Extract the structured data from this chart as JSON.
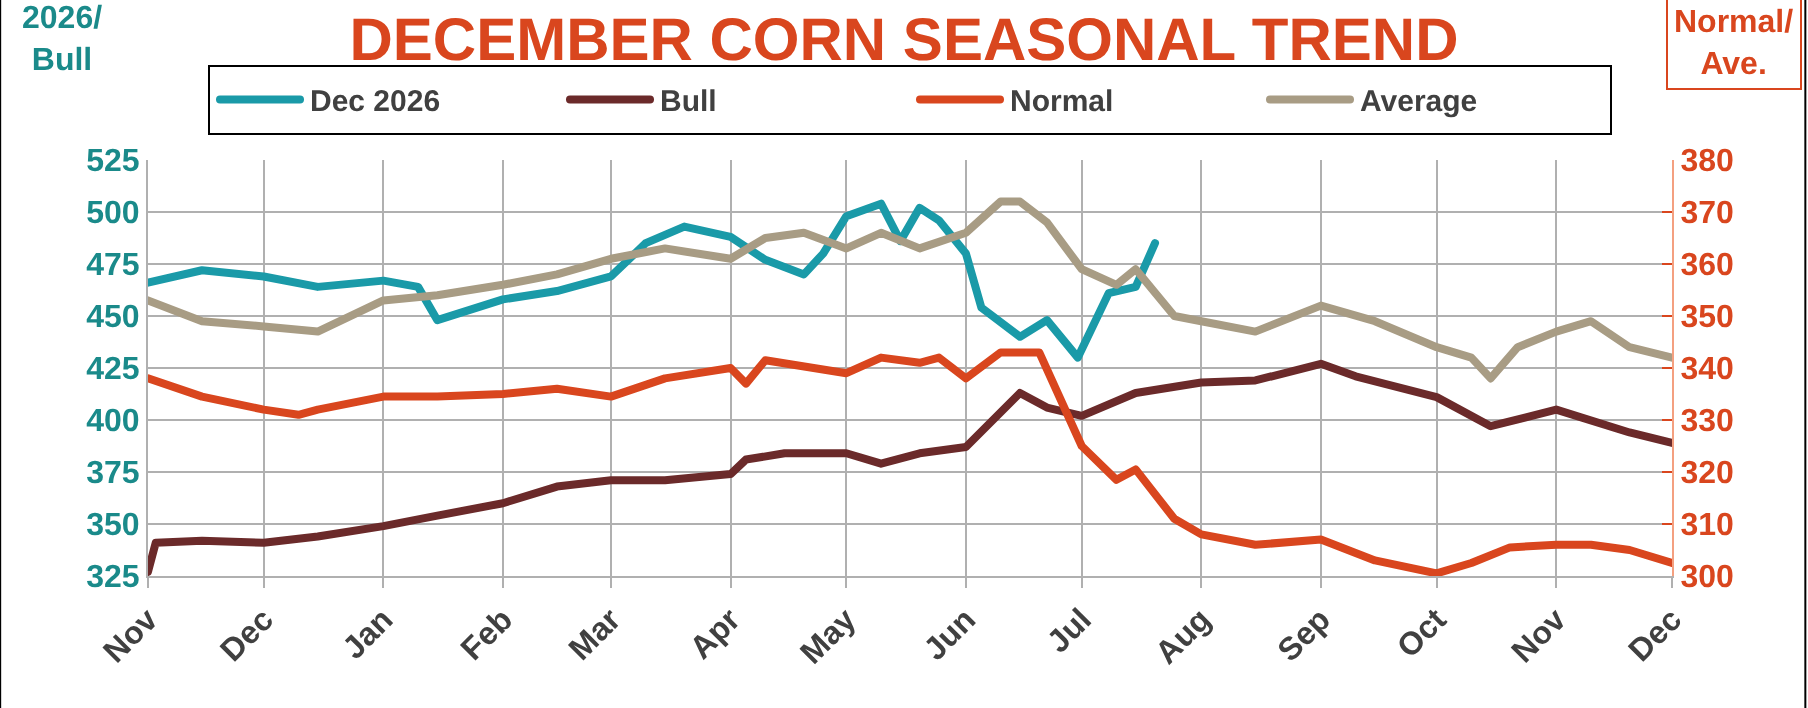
{
  "chart_data": {
    "type": "line",
    "title": "DECEMBER CORN SEASONAL TREND",
    "ylabel": "2026/\nBull",
    "y2label": "Normal/\nAve.",
    "xlim": [
      "2025-11-01",
      "2026-12-01"
    ],
    "xticks": [
      {
        "value": "2025-11-01",
        "label": "Nov"
      },
      {
        "value": "2025-12-01",
        "label": "Dec"
      },
      {
        "value": "2026-01-01",
        "label": "Jan"
      },
      {
        "value": "2026-02-01",
        "label": "Feb"
      },
      {
        "value": "2026-03-01",
        "label": "Mar"
      },
      {
        "value": "2026-04-01",
        "label": "Apr"
      },
      {
        "value": "2026-05-01",
        "label": "May"
      },
      {
        "value": "2026-06-01",
        "label": "Jun"
      },
      {
        "value": "2026-07-01",
        "label": "Jul"
      },
      {
        "value": "2026-08-01",
        "label": "Aug"
      },
      {
        "value": "2026-09-01",
        "label": "Sep"
      },
      {
        "value": "2026-10-01",
        "label": "Oct"
      },
      {
        "value": "2026-11-01",
        "label": "Nov"
      },
      {
        "value": "2026-12-01",
        "label": "Dec"
      }
    ],
    "ylim": [
      325,
      525
    ],
    "yticks": [
      325,
      350,
      375,
      400,
      425,
      450,
      475,
      500,
      525
    ],
    "y2lim": [
      300,
      380
    ],
    "y2ticks": [
      300,
      310,
      320,
      330,
      340,
      350,
      360,
      370,
      380
    ],
    "grid": true,
    "legend": "top",
    "marker": "none",
    "line_style": "solid",
    "series": [
      {
        "name": "Dec 2026",
        "color": "#1a9aa8",
        "x": [
          "2025-11-01",
          "2025-11-15",
          "2025-12-01",
          "2025-12-15",
          "2026-01-01",
          "2026-01-10",
          "2026-01-15",
          "2026-02-01",
          "2026-02-15",
          "2026-03-01",
          "2026-03-10",
          "2026-03-20",
          "2026-04-01",
          "2026-04-10",
          "2026-04-20",
          "2026-04-25",
          "2026-05-01",
          "2026-05-10",
          "2026-05-15",
          "2026-05-20",
          "2026-05-25",
          "2026-06-01",
          "2026-06-05",
          "2026-06-15",
          "2026-06-22",
          "2026-06-30",
          "2026-07-08",
          "2026-07-15",
          "2026-07-20"
        ],
        "values": [
          466,
          472,
          469,
          464,
          467,
          464,
          448,
          458,
          462,
          469,
          485,
          493,
          488,
          477,
          470,
          480,
          498,
          504,
          486,
          502,
          496,
          480,
          454,
          440,
          448,
          430,
          461,
          464,
          485
        ]
      },
      {
        "name": "Bull",
        "color": "#6b2a2a",
        "x": [
          "2025-11-01",
          "2025-11-03",
          "2025-11-15",
          "2025-12-01",
          "2025-12-15",
          "2026-01-01",
          "2026-01-15",
          "2026-02-01",
          "2026-02-15",
          "2026-03-01",
          "2026-03-15",
          "2026-04-01",
          "2026-04-05",
          "2026-04-15",
          "2026-05-01",
          "2026-05-10",
          "2026-05-20",
          "2026-06-01",
          "2026-06-15",
          "2026-06-22",
          "2026-07-01",
          "2026-07-15",
          "2026-08-01",
          "2026-08-15",
          "2026-09-01",
          "2026-09-10",
          "2026-10-01",
          "2026-10-15",
          "2026-11-01",
          "2026-11-20",
          "2026-12-01"
        ],
        "values": [
          327,
          341,
          342,
          341,
          344,
          349,
          354,
          360,
          368,
          371,
          371,
          374,
          381,
          384,
          384,
          379,
          384,
          387,
          413,
          406,
          402,
          413,
          418,
          419,
          427,
          421,
          411,
          397,
          405,
          394,
          389
        ]
      },
      {
        "name": "Normal",
        "color": "#d9461e",
        "axis": "y2",
        "x": [
          "2025-11-01",
          "2025-11-15",
          "2025-12-01",
          "2025-12-10",
          "2025-12-15",
          "2026-01-01",
          "2026-01-15",
          "2026-02-01",
          "2026-02-15",
          "2026-03-01",
          "2026-03-15",
          "2026-04-01",
          "2026-04-05",
          "2026-04-10",
          "2026-05-01",
          "2026-05-10",
          "2026-05-20",
          "2026-05-25",
          "2026-06-01",
          "2026-06-10",
          "2026-06-20",
          "2026-07-01",
          "2026-07-10",
          "2026-07-15",
          "2026-07-25",
          "2026-08-01",
          "2026-08-15",
          "2026-09-01",
          "2026-09-15",
          "2026-10-01",
          "2026-10-10",
          "2026-10-20",
          "2026-11-01",
          "2026-11-10",
          "2026-11-20",
          "2026-12-01"
        ],
        "values": [
          338,
          334.5,
          332,
          331,
          332,
          334.5,
          334.5,
          335,
          336,
          334.5,
          338,
          340,
          337,
          341.5,
          339,
          342,
          341,
          342,
          338,
          343,
          343,
          325,
          318.5,
          320.5,
          311,
          308,
          306,
          307,
          303,
          300.5,
          302.5,
          305.5,
          306,
          306,
          305,
          302.5
        ]
      },
      {
        "name": "Average",
        "color": "#a89c84",
        "axis": "y2",
        "x": [
          "2025-11-01",
          "2025-11-15",
          "2025-12-01",
          "2025-12-15",
          "2026-01-01",
          "2026-01-15",
          "2026-02-01",
          "2026-02-15",
          "2026-03-01",
          "2026-03-15",
          "2026-04-01",
          "2026-04-10",
          "2026-04-20",
          "2026-05-01",
          "2026-05-10",
          "2026-05-20",
          "2026-06-01",
          "2026-06-10",
          "2026-06-15",
          "2026-06-22",
          "2026-07-01",
          "2026-07-10",
          "2026-07-15",
          "2026-07-25",
          "2026-08-01",
          "2026-08-15",
          "2026-09-01",
          "2026-09-15",
          "2026-10-01",
          "2026-10-10",
          "2026-10-15",
          "2026-10-22",
          "2026-11-01",
          "2026-11-10",
          "2026-11-20",
          "2026-12-01"
        ],
        "values": [
          353,
          349,
          348,
          347,
          353,
          354,
          356,
          358,
          361,
          363,
          361,
          365,
          366,
          363,
          366,
          363,
          366,
          372,
          372,
          368,
          359,
          356,
          359,
          350,
          349,
          347,
          352,
          349,
          344,
          342,
          338,
          344,
          347,
          349,
          344,
          342
        ]
      }
    ]
  }
}
